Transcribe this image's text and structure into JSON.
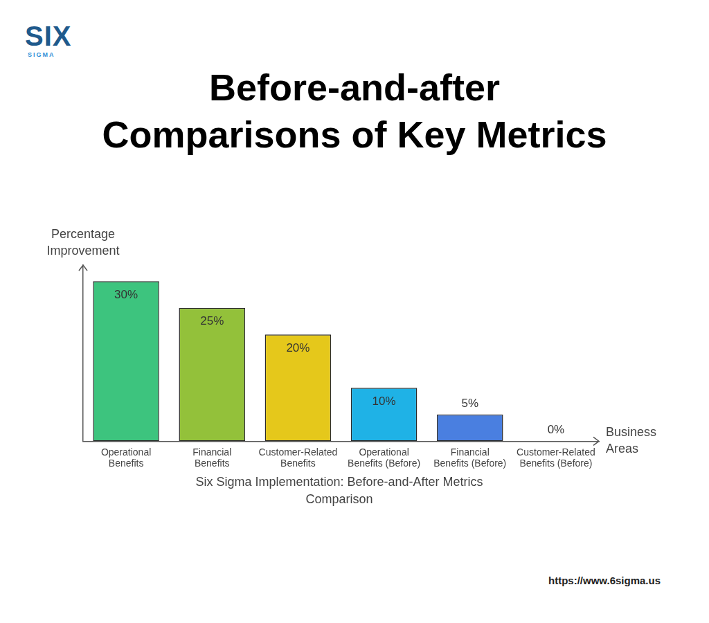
{
  "chart_data": {
    "type": "bar",
    "title": "Before-and-after Comparisons of Key Metrics",
    "subtitle": "Six Sigma Implementation: Before-and-After Metrics Comparison",
    "x_label": "Business Areas",
    "y_label": "Percentage Improvement",
    "categories": [
      "Operational Benefits",
      "Financial Benefits",
      "Customer-Related Benefits",
      "Operational Benefits (Before)",
      "Financial Benefits (Before)",
      "Customer-Related Benefits (Before)"
    ],
    "values": [
      30,
      25,
      20,
      10,
      5,
      0
    ],
    "value_labels": [
      "30%",
      "25%",
      "20%",
      "10%",
      "5%",
      "0%"
    ],
    "data_labels": true,
    "colors": [
      "#3dc47e",
      "#93c13a",
      "#e5c81b",
      "#1fb2e6",
      "#4a7fe0",
      "#7b61e0"
    ],
    "ylim": [
      0,
      33
    ],
    "grid": false,
    "tick_labels": "x",
    "annotations": [
      "SIX",
      "SIGMA",
      "https://www.6sigma.us"
    ]
  }
}
